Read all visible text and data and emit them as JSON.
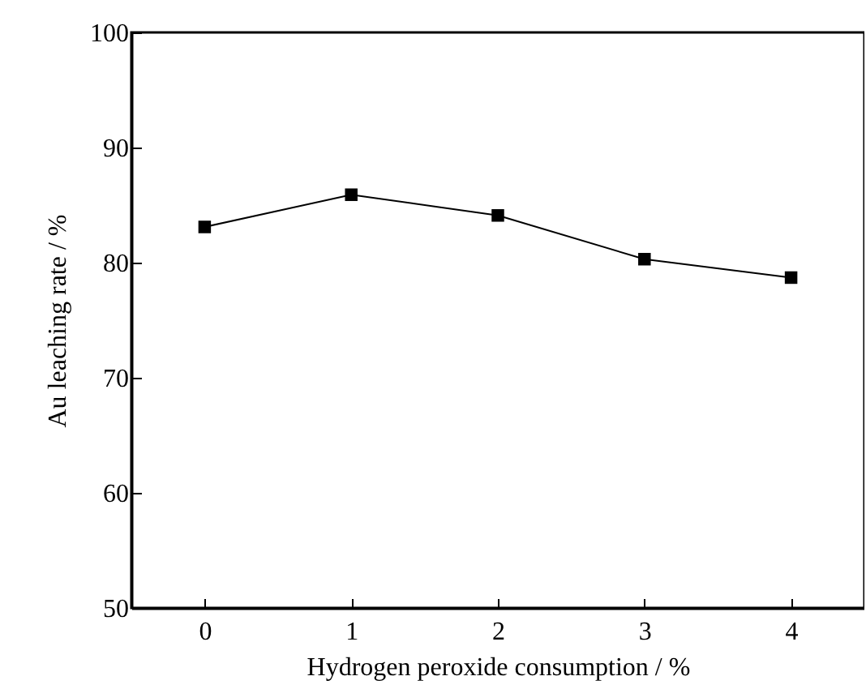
{
  "chart_data": {
    "type": "line",
    "xlabel": "Hydrogen peroxide consumption / %",
    "ylabel": "Au leaching rate / %",
    "x": [
      0,
      1,
      2,
      3,
      4
    ],
    "series": [
      {
        "color": "#000000",
        "values": [
          83.1,
          85.9,
          84.1,
          80.3,
          78.7
        ]
      }
    ],
    "xlim": [
      -0.5,
      4.5
    ],
    "xticks": [
      0,
      1,
      2,
      3,
      4
    ],
    "ylim": [
      50,
      100
    ],
    "yticks": [
      50,
      60,
      70,
      80,
      90,
      100
    ],
    "grid": false,
    "marker": "square",
    "line_style": "solid"
  }
}
